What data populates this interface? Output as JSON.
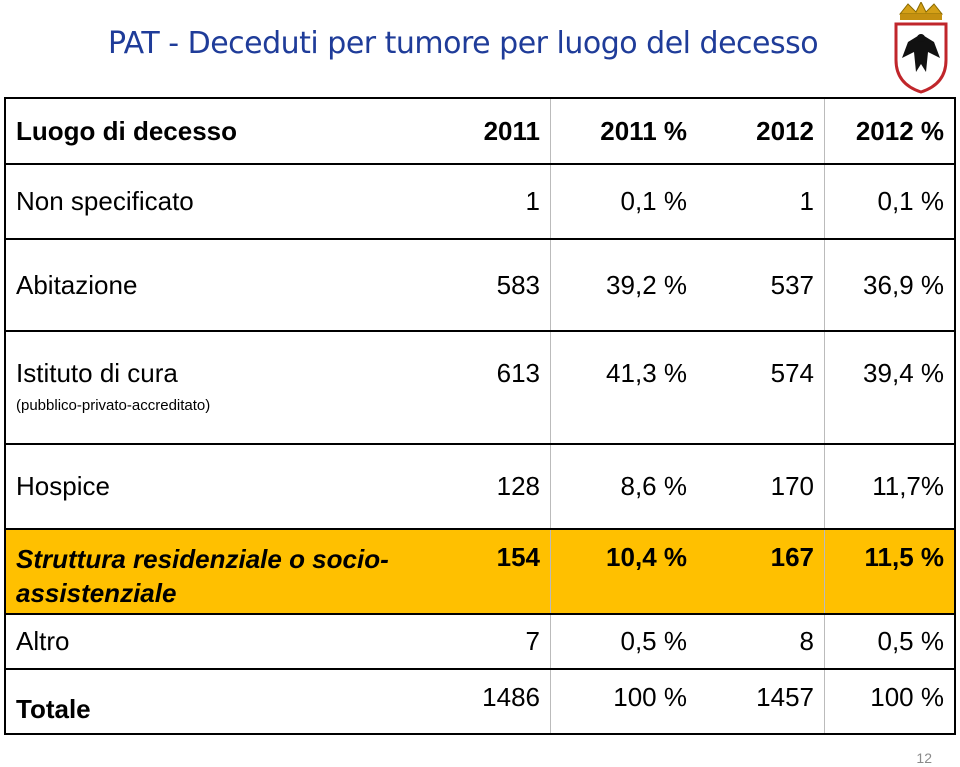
{
  "title": "PAT - Deceduti per tumore per luogo del decesso",
  "table": {
    "header": [
      "Luogo di decesso",
      "2011",
      "2011 %",
      "2012",
      "2012 %"
    ],
    "rows": [
      {
        "label": "Non specificato",
        "cells": [
          "1",
          "0,1 %",
          "1",
          "0,1 %"
        ]
      },
      {
        "label": "Abitazione",
        "cells": [
          "583",
          "39,2 %",
          "537",
          "36,9 %"
        ]
      },
      {
        "label": "Istituto di cura",
        "sublabel": "(pubblico-privato-accreditato)",
        "cells": [
          "613",
          "41,3 %",
          "574",
          "39,4 %"
        ]
      },
      {
        "label": "Hospice",
        "cells": [
          "128",
          "8,6 %",
          "170",
          "11,7%"
        ]
      },
      {
        "label": "Struttura residenziale o socio-assistenziale",
        "cells": [
          "154",
          "10,4 %",
          "167",
          "11,5 %"
        ]
      },
      {
        "label": "Altro",
        "cells": [
          "7",
          "0,5 %",
          "8",
          "0,5 %"
        ]
      },
      {
        "label": "Totale",
        "cells": [
          "1486",
          "100 %",
          "1457",
          "100 %"
        ]
      }
    ]
  },
  "page_number": "12"
}
